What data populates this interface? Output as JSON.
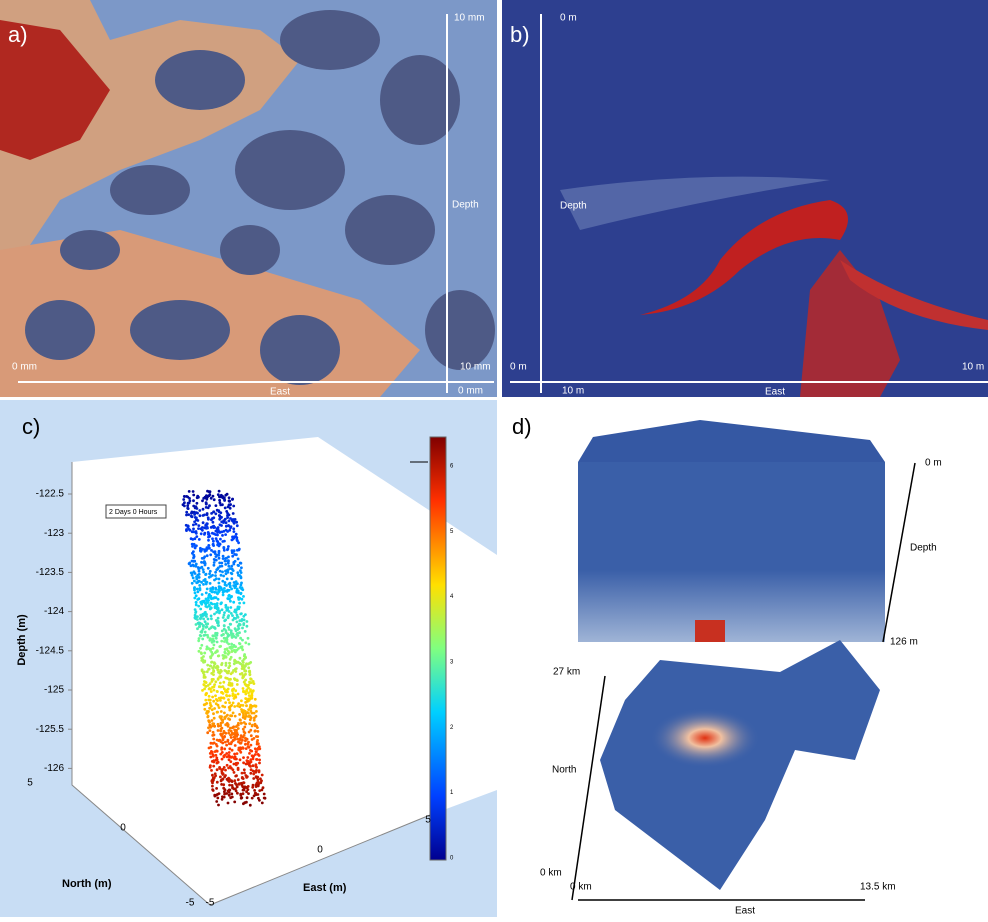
{
  "panel_a": {
    "label": "a)",
    "depth_top": "10 mm",
    "depth_label": "Depth",
    "east_start": "0 mm",
    "east_end": "10 mm",
    "east_label": "East",
    "depth_bottom": "0 mm"
  },
  "panel_b": {
    "label": "b)",
    "depth_top": "0 m",
    "depth_label": "Depth",
    "east_start": "0 m",
    "east_end": "10 m",
    "east_label": "East",
    "depth_bottom": "10 m"
  },
  "panel_c": {
    "label": "c)",
    "y_label": "Depth (m)",
    "y_ticks": [
      "-122.5",
      "-123",
      "-123.5",
      "-124",
      "-124.5",
      "-125",
      "-125.5",
      "-126"
    ],
    "north_label": "North (m)",
    "north_ticks": [
      "5",
      "0",
      "-5"
    ],
    "east_label": "East (m)",
    "east_ticks": [
      "-5",
      "0",
      "5"
    ],
    "time_box": "2 Days 0 Hours",
    "colorbar_ticks": [
      "0",
      "1",
      "2",
      "3",
      "4",
      "5",
      "6"
    ]
  },
  "panel_d": {
    "label": "d)",
    "depth_top": "0 m",
    "depth_label": "Depth",
    "depth_bottom": "126 m",
    "north_top": "27 km",
    "north_label": "North",
    "north_bottom": "0 km",
    "east_start": "0 km",
    "east_end": "13.5 km",
    "east_label": "East"
  }
}
